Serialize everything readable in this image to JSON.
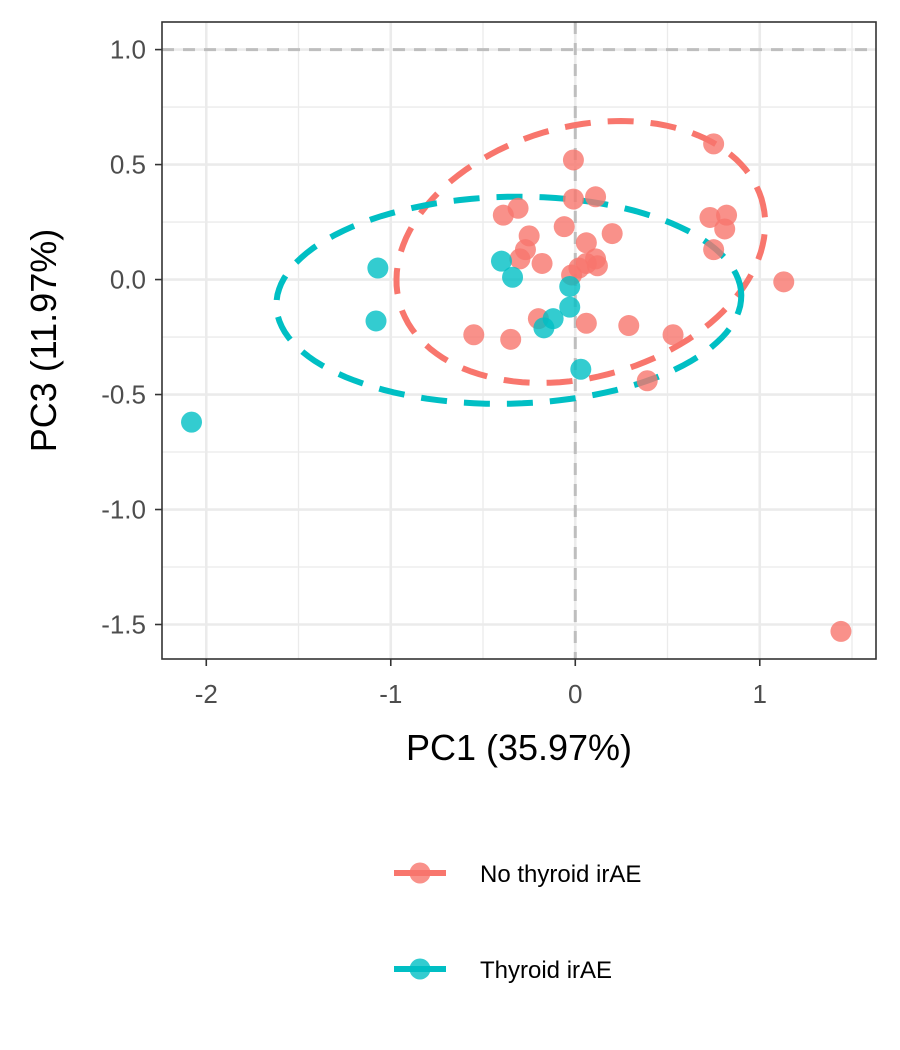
{
  "chart_data": {
    "type": "scatter",
    "xlabel": "PC1 (35.97%)",
    "ylabel": "PC3 (11.97%)",
    "xlim": [
      -2.24,
      1.63
    ],
    "ylim": [
      -1.65,
      1.12
    ],
    "x_ticks": [
      {
        "value": -2,
        "label": "-2"
      },
      {
        "value": -1,
        "label": "-1"
      },
      {
        "value": 0,
        "label": "0"
      },
      {
        "value": 1,
        "label": "1"
      }
    ],
    "y_ticks": [
      {
        "value": 1.0,
        "label": "1.0"
      },
      {
        "value": 0.5,
        "label": "0.5"
      },
      {
        "value": 0.0,
        "label": "0.0"
      },
      {
        "value": -0.5,
        "label": "-0.5"
      },
      {
        "value": -1.0,
        "label": "-1.0"
      },
      {
        "value": -1.5,
        "label": "-1.5"
      }
    ],
    "grid": true,
    "reference_lines": {
      "x": 0,
      "y": 1.0
    },
    "legend_position": "bottom",
    "series": [
      {
        "name": "No thyroid irAE",
        "color": "#F8766D",
        "points": [
          [
            -0.01,
            0.52
          ],
          [
            0.75,
            0.59
          ],
          [
            -0.01,
            0.35
          ],
          [
            0.11,
            0.36
          ],
          [
            -0.31,
            0.31
          ],
          [
            -0.39,
            0.28
          ],
          [
            0.73,
            0.27
          ],
          [
            0.82,
            0.28
          ],
          [
            -0.06,
            0.23
          ],
          [
            0.81,
            0.22
          ],
          [
            -0.25,
            0.19
          ],
          [
            0.2,
            0.2
          ],
          [
            0.06,
            0.16
          ],
          [
            -0.27,
            0.13
          ],
          [
            0.75,
            0.13
          ],
          [
            -0.3,
            0.09
          ],
          [
            0.11,
            0.09
          ],
          [
            0.06,
            0.07
          ],
          [
            -0.18,
            0.07
          ],
          [
            0.12,
            0.06
          ],
          [
            0.02,
            0.05
          ],
          [
            -0.02,
            0.02
          ],
          [
            1.13,
            -0.01
          ],
          [
            -0.2,
            -0.17
          ],
          [
            0.06,
            -0.19
          ],
          [
            0.29,
            -0.2
          ],
          [
            -0.55,
            -0.24
          ],
          [
            0.53,
            -0.24
          ],
          [
            -0.35,
            -0.26
          ],
          [
            0.39,
            -0.44
          ],
          [
            1.44,
            -1.53
          ]
        ]
      },
      {
        "name": "Thyroid irAE",
        "color": "#00BFC4",
        "points": [
          [
            -1.07,
            0.05
          ],
          [
            -0.4,
            0.08
          ],
          [
            -0.34,
            0.01
          ],
          [
            -0.03,
            -0.03
          ],
          [
            -1.08,
            -0.18
          ],
          [
            -0.03,
            -0.12
          ],
          [
            -0.12,
            -0.17
          ],
          [
            -0.17,
            -0.21
          ],
          [
            0.03,
            -0.39
          ],
          [
            -2.08,
            -0.62
          ]
        ]
      }
    ],
    "ellipses": [
      {
        "series": "No thyroid irAE",
        "cx": 0.03,
        "cy": 0.12,
        "rx": 1.01,
        "ry": 0.55,
        "angle_deg": 10
      },
      {
        "series": "Thyroid irAE",
        "cx": -0.36,
        "cy": -0.09,
        "rx": 1.26,
        "ry": 0.45,
        "angle_deg": 1
      }
    ]
  }
}
